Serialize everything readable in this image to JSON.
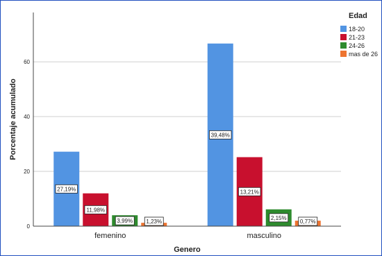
{
  "chart_data": {
    "type": "bar",
    "xlabel": "Genero",
    "ylabel": "Porcentaje acumulado",
    "ylim": [
      0,
      78
    ],
    "yticks": [
      0,
      20,
      40,
      60
    ],
    "grid": "horizontal",
    "legend_position": "top-right",
    "legend_title": "Edad",
    "categories": [
      "femenino",
      "masculino"
    ],
    "series": [
      {
        "name": "18-20",
        "color": "#5294e2",
        "values": [
          27.19,
          66.67
        ],
        "labels": [
          "27,19%",
          "39,48%"
        ]
      },
      {
        "name": "21-23",
        "color": "#c8102e",
        "values": [
          11.98,
          25.19
        ],
        "labels": [
          "11,98%",
          "13,21%"
        ]
      },
      {
        "name": "24-26",
        "color": "#2e8b2e",
        "values": [
          3.99,
          6.14
        ],
        "labels": [
          "3,99%",
          "2,15%"
        ]
      },
      {
        "name": "mas de 26",
        "color": "#ee7430",
        "values": [
          1.23,
          2.0
        ],
        "labels": [
          "1,23%",
          "0,77%"
        ]
      }
    ]
  }
}
